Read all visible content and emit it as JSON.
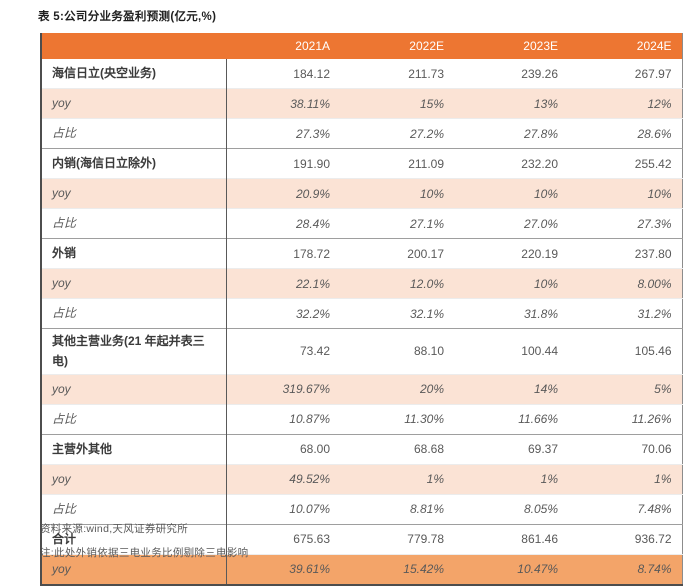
{
  "page": {
    "title": "表 5:公司分业务盈利预测(亿元,%)",
    "source": "资料来源:wind,天风证券研究所",
    "note": "注:此处外销依据三电业务比例剔除三电影响"
  },
  "chart_data": {
    "type": "table",
    "title": "表 5:公司分业务盈利预测(亿元,%)",
    "columns": [
      "2021A",
      "2022E",
      "2023E",
      "2024E"
    ],
    "rows": [
      {
        "label": "海信日立(央空业务)",
        "type": "section",
        "values": [
          "184.12",
          "211.73",
          "239.26",
          "267.97"
        ]
      },
      {
        "label": "yoy",
        "type": "yoy",
        "values": [
          "38.11%",
          "15%",
          "13%",
          "12%"
        ]
      },
      {
        "label": "占比",
        "type": "share",
        "values": [
          "27.3%",
          "27.2%",
          "27.8%",
          "28.6%"
        ]
      },
      {
        "label": "内销(海信日立除外)",
        "type": "section",
        "values": [
          "191.90",
          "211.09",
          "232.20",
          "255.42"
        ]
      },
      {
        "label": "yoy",
        "type": "yoy",
        "values": [
          "20.9%",
          "10%",
          "10%",
          "10%"
        ]
      },
      {
        "label": "占比",
        "type": "share",
        "values": [
          "28.4%",
          "27.1%",
          "27.0%",
          "27.3%"
        ]
      },
      {
        "label": "外销",
        "type": "section",
        "values": [
          "178.72",
          "200.17",
          "220.19",
          "237.80"
        ]
      },
      {
        "label": "yoy",
        "type": "yoy",
        "values": [
          "22.1%",
          "12.0%",
          "10%",
          "8.00%"
        ]
      },
      {
        "label": "占比",
        "type": "share",
        "values": [
          "32.2%",
          "32.1%",
          "31.8%",
          "31.2%"
        ]
      },
      {
        "label": "其他主营业务(21 年起并表三电)",
        "type": "section",
        "values": [
          "73.42",
          "88.10",
          "100.44",
          "105.46"
        ]
      },
      {
        "label": "yoy",
        "type": "yoy",
        "values": [
          "319.67%",
          "20%",
          "14%",
          "5%"
        ]
      },
      {
        "label": "占比",
        "type": "share",
        "values": [
          "10.87%",
          "11.30%",
          "11.66%",
          "11.26%"
        ]
      },
      {
        "label": "主营外其他",
        "type": "section",
        "values": [
          "68.00",
          "68.68",
          "69.37",
          "70.06"
        ]
      },
      {
        "label": "yoy",
        "type": "yoy",
        "values": [
          "49.52%",
          "1%",
          "1%",
          "1%"
        ]
      },
      {
        "label": "占比",
        "type": "share",
        "values": [
          "10.07%",
          "8.81%",
          "8.05%",
          "7.48%"
        ]
      },
      {
        "label": "合计",
        "type": "total",
        "values": [
          "675.63",
          "779.78",
          "861.46",
          "936.72"
        ]
      },
      {
        "label": "yoy",
        "type": "total-yoy",
        "values": [
          "39.61%",
          "15.42%",
          "10.47%",
          "8.74%"
        ]
      }
    ]
  },
  "colors": {
    "header_bg": "#ED7632",
    "header_text": "#FFFFFF",
    "yoy_row_bg": "#FBE3D5",
    "total_yoy_row_bg": "#F3A469",
    "border_dark": "#4D4D4D",
    "section_line": "#9E9E9E",
    "text_dark": "#3A3A3A",
    "text_gray": "#595959"
  }
}
